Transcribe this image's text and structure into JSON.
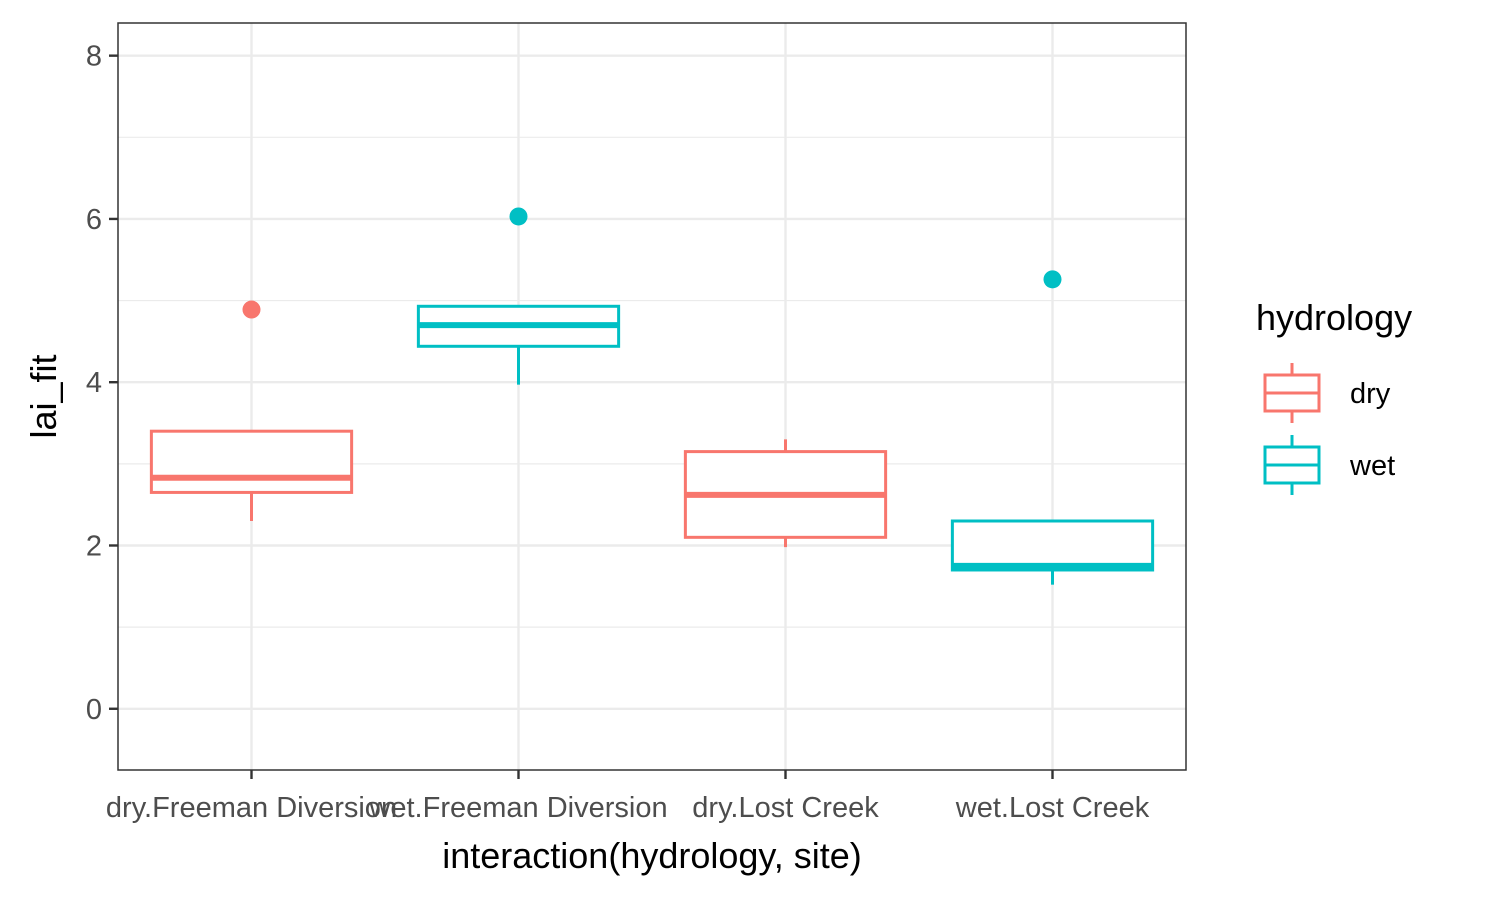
{
  "chart_data": {
    "type": "box",
    "xlabel": "interaction(hydrology, site)",
    "ylabel": "lai_fit",
    "ylim": [
      -0.75,
      8.4
    ],
    "yticks": [
      0,
      2,
      4,
      6,
      8
    ],
    "grid": true,
    "legend": {
      "title": "hydrology",
      "placement": "right",
      "entries": [
        {
          "label": "dry",
          "color": "#F8766D"
        },
        {
          "label": "wet",
          "color": "#00BFC4"
        }
      ]
    },
    "categories": [
      "dry.Freeman Diversion",
      "wet.Freeman Diversion",
      "dry.Lost Creek",
      "wet.Lost Creek"
    ],
    "boxes": [
      {
        "category": "dry.Freeman Diversion",
        "group": "dry",
        "whisker_low": 2.3,
        "q1": 2.65,
        "median": 2.83,
        "q3": 3.4,
        "whisker_high": 3.4,
        "outliers": [
          4.89
        ]
      },
      {
        "category": "wet.Freeman Diversion",
        "group": "wet",
        "whisker_low": 3.97,
        "q1": 4.44,
        "median": 4.7,
        "q3": 4.93,
        "whisker_high": 4.93,
        "outliers": [
          6.03
        ]
      },
      {
        "category": "dry.Lost Creek",
        "group": "dry",
        "whisker_low": 1.98,
        "q1": 2.1,
        "median": 2.62,
        "q3": 3.15,
        "whisker_high": 3.3,
        "outliers": []
      },
      {
        "category": "wet.Lost Creek",
        "group": "wet",
        "whisker_low": 1.52,
        "q1": 1.7,
        "median": 1.75,
        "q3": 2.3,
        "whisker_high": 2.3,
        "outliers": [
          5.26
        ]
      }
    ]
  },
  "colors": {
    "dry": "#F8766D",
    "wet": "#00BFC4",
    "panel_border": "#333333",
    "grid": "#ebebeb"
  }
}
